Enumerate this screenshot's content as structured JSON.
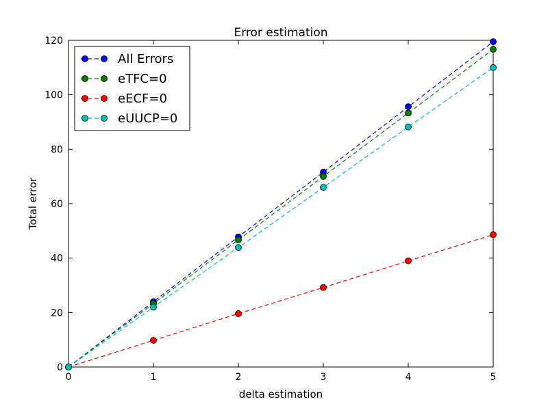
{
  "chart_data": {
    "type": "line",
    "title": "Error estimation",
    "xlabel": "delta estimation",
    "ylabel": "Total error",
    "xlim": [
      0,
      5
    ],
    "ylim": [
      0,
      120
    ],
    "x_ticks": [
      "0",
      "1",
      "2",
      "3",
      "4",
      "5"
    ],
    "y_ticks": [
      "0",
      "20",
      "40",
      "60",
      "80",
      "100",
      "120"
    ],
    "grid": false,
    "legend_position": "top-left",
    "x": [
      0,
      1,
      2,
      3,
      4,
      5
    ],
    "series": [
      {
        "name": "All Errors",
        "color": "#0000ff",
        "values": [
          0,
          24,
          47.8,
          71.6,
          95.6,
          119.5
        ]
      },
      {
        "name": "eTFC=0",
        "color": "#008000",
        "values": [
          0,
          23.3,
          46.7,
          70,
          93.3,
          116.7
        ]
      },
      {
        "name": "eECF=0",
        "color": "#ff0000",
        "values": [
          0,
          9.8,
          19.6,
          29.2,
          39,
          48.6
        ]
      },
      {
        "name": "eUUCP=0",
        "color": "#00bfbf",
        "values": [
          0,
          22,
          43.9,
          66,
          88.2,
          110
        ]
      }
    ]
  }
}
